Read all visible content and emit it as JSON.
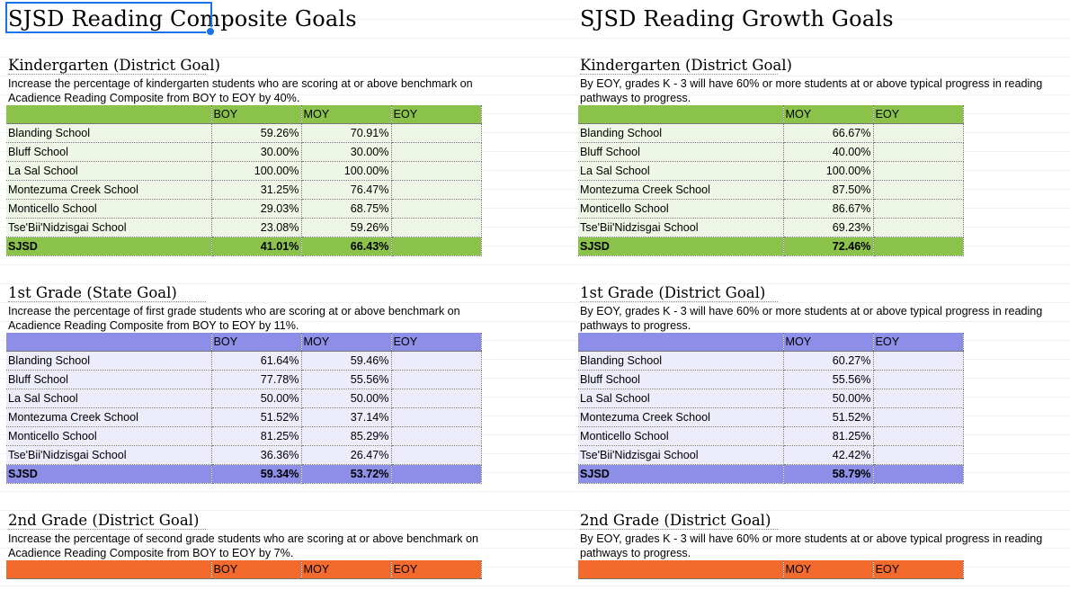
{
  "colors": {
    "kinder_header": "#8bc34a",
    "kinder_row": "#eef7e5",
    "grade1_header": "#8c8ee8",
    "grade1_row": "#ececfb",
    "grade2_header": "#f26b2c",
    "selection": "#1a73e8"
  },
  "composite": {
    "title": "SJSD Reading Composite Goals",
    "sections": [
      {
        "title": "Kindergarten (District Goal)",
        "desc": "Increase the percentage of kindergarten students who are scoring at or above benchmark on Acadience Reading Composite from BOY to EOY by 40%.",
        "headers": [
          "",
          "BOY",
          "MOY",
          "EOY"
        ],
        "rows": [
          [
            "Blanding School",
            "59.26%",
            "70.91%",
            ""
          ],
          [
            "Bluff School",
            "30.00%",
            "30.00%",
            ""
          ],
          [
            "La Sal School",
            "100.00%",
            "100.00%",
            ""
          ],
          [
            "Montezuma Creek School",
            "31.25%",
            "76.47%",
            ""
          ],
          [
            "Monticello School",
            "29.03%",
            "68.75%",
            ""
          ],
          [
            "Tse'Bii'Nidzisgai School",
            "23.08%",
            "59.26%",
            ""
          ],
          [
            "SJSD",
            "41.01%",
            "66.43%",
            ""
          ]
        ]
      },
      {
        "title": "1st Grade (State Goal)",
        "desc": "Increase the percentage of first grade students who are scoring at or above benchmark on Acadience Reading Composite from BOY to EOY by 11%.",
        "headers": [
          "",
          "BOY",
          "MOY",
          "EOY"
        ],
        "rows": [
          [
            "Blanding School",
            "61.64%",
            "59.46%",
            ""
          ],
          [
            "Bluff School",
            "77.78%",
            "55.56%",
            ""
          ],
          [
            "La Sal School",
            "50.00%",
            "50.00%",
            ""
          ],
          [
            "Montezuma Creek School",
            "51.52%",
            "37.14%",
            ""
          ],
          [
            "Monticello School",
            "81.25%",
            "85.29%",
            ""
          ],
          [
            "Tse'Bii'Nidzisgai School",
            "36.36%",
            "26.47%",
            ""
          ],
          [
            "SJSD",
            "59.34%",
            "53.72%",
            ""
          ]
        ]
      },
      {
        "title": "2nd Grade (District Goal)",
        "desc": "Increase the percentage of second grade students who are scoring at or above benchmark on Acadience Reading Composite from BOY to EOY by 7%.",
        "headers": [
          "",
          "BOY",
          "MOY",
          "EOY"
        ],
        "rows": []
      }
    ]
  },
  "growth": {
    "title": "SJSD Reading Growth Goals",
    "sections": [
      {
        "title": "Kindergarten (District Goal)",
        "desc": "By EOY, grades K - 3 will have 60% or more students at or above typical progress in reading pathways to progress.",
        "headers": [
          "",
          "MOY",
          "EOY"
        ],
        "rows": [
          [
            "Blanding School",
            "66.67%",
            ""
          ],
          [
            "Bluff School",
            "40.00%",
            ""
          ],
          [
            "La Sal School",
            "100.00%",
            ""
          ],
          [
            "Montezuma Creek School",
            "87.50%",
            ""
          ],
          [
            "Monticello School",
            "86.67%",
            ""
          ],
          [
            "Tse'Bii'Nidzisgai School",
            "69.23%",
            ""
          ],
          [
            "SJSD",
            "72.46%",
            ""
          ]
        ]
      },
      {
        "title": "1st Grade (District Goal)",
        "desc": "By EOY, grades K - 3 will have 60% or more students at or above typical progress in reading pathways to progress.",
        "headers": [
          "",
          "MOY",
          "EOY"
        ],
        "rows": [
          [
            "Blanding School",
            "60.27%",
            ""
          ],
          [
            "Bluff School",
            "55.56%",
            ""
          ],
          [
            "La Sal School",
            "50.00%",
            ""
          ],
          [
            "Montezuma Creek School",
            "51.52%",
            ""
          ],
          [
            "Monticello School",
            "81.25%",
            ""
          ],
          [
            "Tse'Bii'Nidzisgai School",
            "42.42%",
            ""
          ],
          [
            "SJSD",
            "58.79%",
            ""
          ]
        ]
      },
      {
        "title": "2nd Grade (District Goal)",
        "desc": "By EOY, grades K - 3 will have 60% or more students at or above typical progress in reading pathways to progress.",
        "headers": [
          "",
          "MOY",
          "EOY"
        ],
        "rows": []
      }
    ]
  }
}
